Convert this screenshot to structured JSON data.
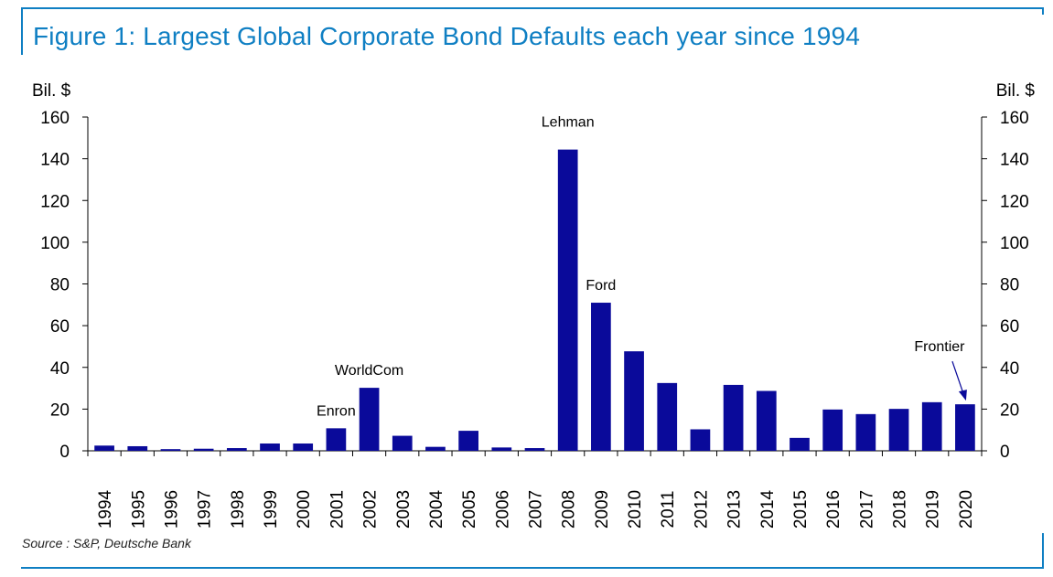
{
  "title": "Figure 1: Largest Global Corporate Bond Defaults each year since 1994",
  "source": "Source : S&P, Deutsche Bank",
  "colors": {
    "accent": "#0f7fc3",
    "bar": "#0a0a9a"
  },
  "chart_data": {
    "type": "bar",
    "ylabel_left": "Bil. $",
    "ylabel_right": "Bil. $",
    "ylim": [
      0,
      160
    ],
    "yticks": [
      0,
      20,
      40,
      60,
      80,
      100,
      120,
      140,
      160
    ],
    "grid": false,
    "categories": [
      "1994",
      "1995",
      "1996",
      "1997",
      "1998",
      "1999",
      "2000",
      "2001",
      "2002",
      "2003",
      "2004",
      "2005",
      "2006",
      "2007",
      "2008",
      "2009",
      "2010",
      "2011",
      "2012",
      "2013",
      "2014",
      "2015",
      "2016",
      "2017",
      "2018",
      "2019",
      "2020"
    ],
    "series": [
      {
        "values": [
          2.5,
          2.2,
          0.8,
          1.0,
          1.3,
          3.5,
          3.5,
          10.8,
          30.2,
          7.2,
          1.9,
          9.6,
          1.6,
          1.3,
          144.4,
          71.0,
          47.7,
          32.5,
          10.3,
          31.6,
          28.7,
          6.2,
          19.8,
          17.6,
          20.1,
          23.3,
          22.3
        ]
      }
    ],
    "annotations": [
      {
        "label": "Enron",
        "category": "2001"
      },
      {
        "label": "WorldCom",
        "category": "2002"
      },
      {
        "label": "Lehman",
        "category": "2008"
      },
      {
        "label": "Ford",
        "category": "2009"
      },
      {
        "label": "Frontier",
        "category": "2020",
        "arrow": true
      }
    ]
  }
}
